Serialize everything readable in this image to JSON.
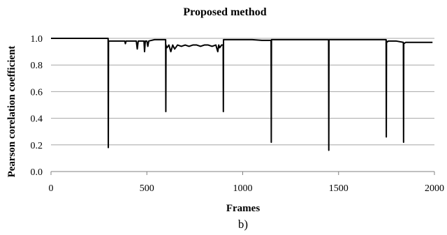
{
  "chart_data": {
    "type": "line",
    "title": "Proposed method",
    "xlabel": "Frames",
    "ylabel": "Pearson corelation coefficient",
    "caption": "b)",
    "xlim": [
      0,
      2000
    ],
    "ylim": [
      0,
      1.0
    ],
    "xticks": [
      0,
      500,
      1000,
      1500,
      2000
    ],
    "yticks": [
      "0.0",
      "0.2",
      "0.4",
      "0.6",
      "0.8",
      "1.0"
    ],
    "grid": "horizontal",
    "legend": "none",
    "line_color": "#000000",
    "series": [
      {
        "x": [
          0,
          298,
          299,
          300,
          301,
          305,
          330,
          360,
          385,
          388,
          392,
          420,
          445,
          450,
          455,
          470,
          485,
          488,
          492,
          500,
          505,
          510,
          540,
          570,
          598,
          599,
          600,
          601,
          605,
          615,
          625,
          635,
          645,
          660,
          680,
          700,
          720,
          740,
          760,
          780,
          800,
          820,
          840,
          860,
          870,
          875,
          880,
          890,
          898,
          899,
          900,
          901,
          905,
          930,
          960,
          1000,
          1050,
          1100,
          1148,
          1149,
          1150,
          1151,
          1160,
          1250,
          1350,
          1448,
          1449,
          1450,
          1451,
          1460,
          1550,
          1650,
          1748,
          1749,
          1750,
          1751,
          1760,
          1800,
          1838,
          1839,
          1840,
          1841,
          1850,
          1880,
          1920,
          1950,
          1980,
          1990
        ],
        "y": [
          1.0,
          1.0,
          0.18,
          0.98,
          0.98,
          0.98,
          0.98,
          0.98,
          0.98,
          0.96,
          0.98,
          0.98,
          0.98,
          0.92,
          0.98,
          0.98,
          0.98,
          0.9,
          0.98,
          0.98,
          0.94,
          0.98,
          0.99,
          0.99,
          0.99,
          0.45,
          0.95,
          0.94,
          0.93,
          0.95,
          0.9,
          0.95,
          0.92,
          0.95,
          0.94,
          0.95,
          0.94,
          0.95,
          0.95,
          0.94,
          0.95,
          0.95,
          0.94,
          0.95,
          0.9,
          0.95,
          0.93,
          0.95,
          0.95,
          0.45,
          0.99,
          0.99,
          0.99,
          0.99,
          0.99,
          0.99,
          0.99,
          0.985,
          0.985,
          0.22,
          0.99,
          0.99,
          0.99,
          0.99,
          0.99,
          0.99,
          0.16,
          0.99,
          0.99,
          0.99,
          0.99,
          0.99,
          0.99,
          0.26,
          0.98,
          0.97,
          0.98,
          0.98,
          0.97,
          0.22,
          0.96,
          0.96,
          0.97,
          0.97,
          0.97,
          0.97,
          0.97,
          0.97
        ]
      }
    ]
  }
}
